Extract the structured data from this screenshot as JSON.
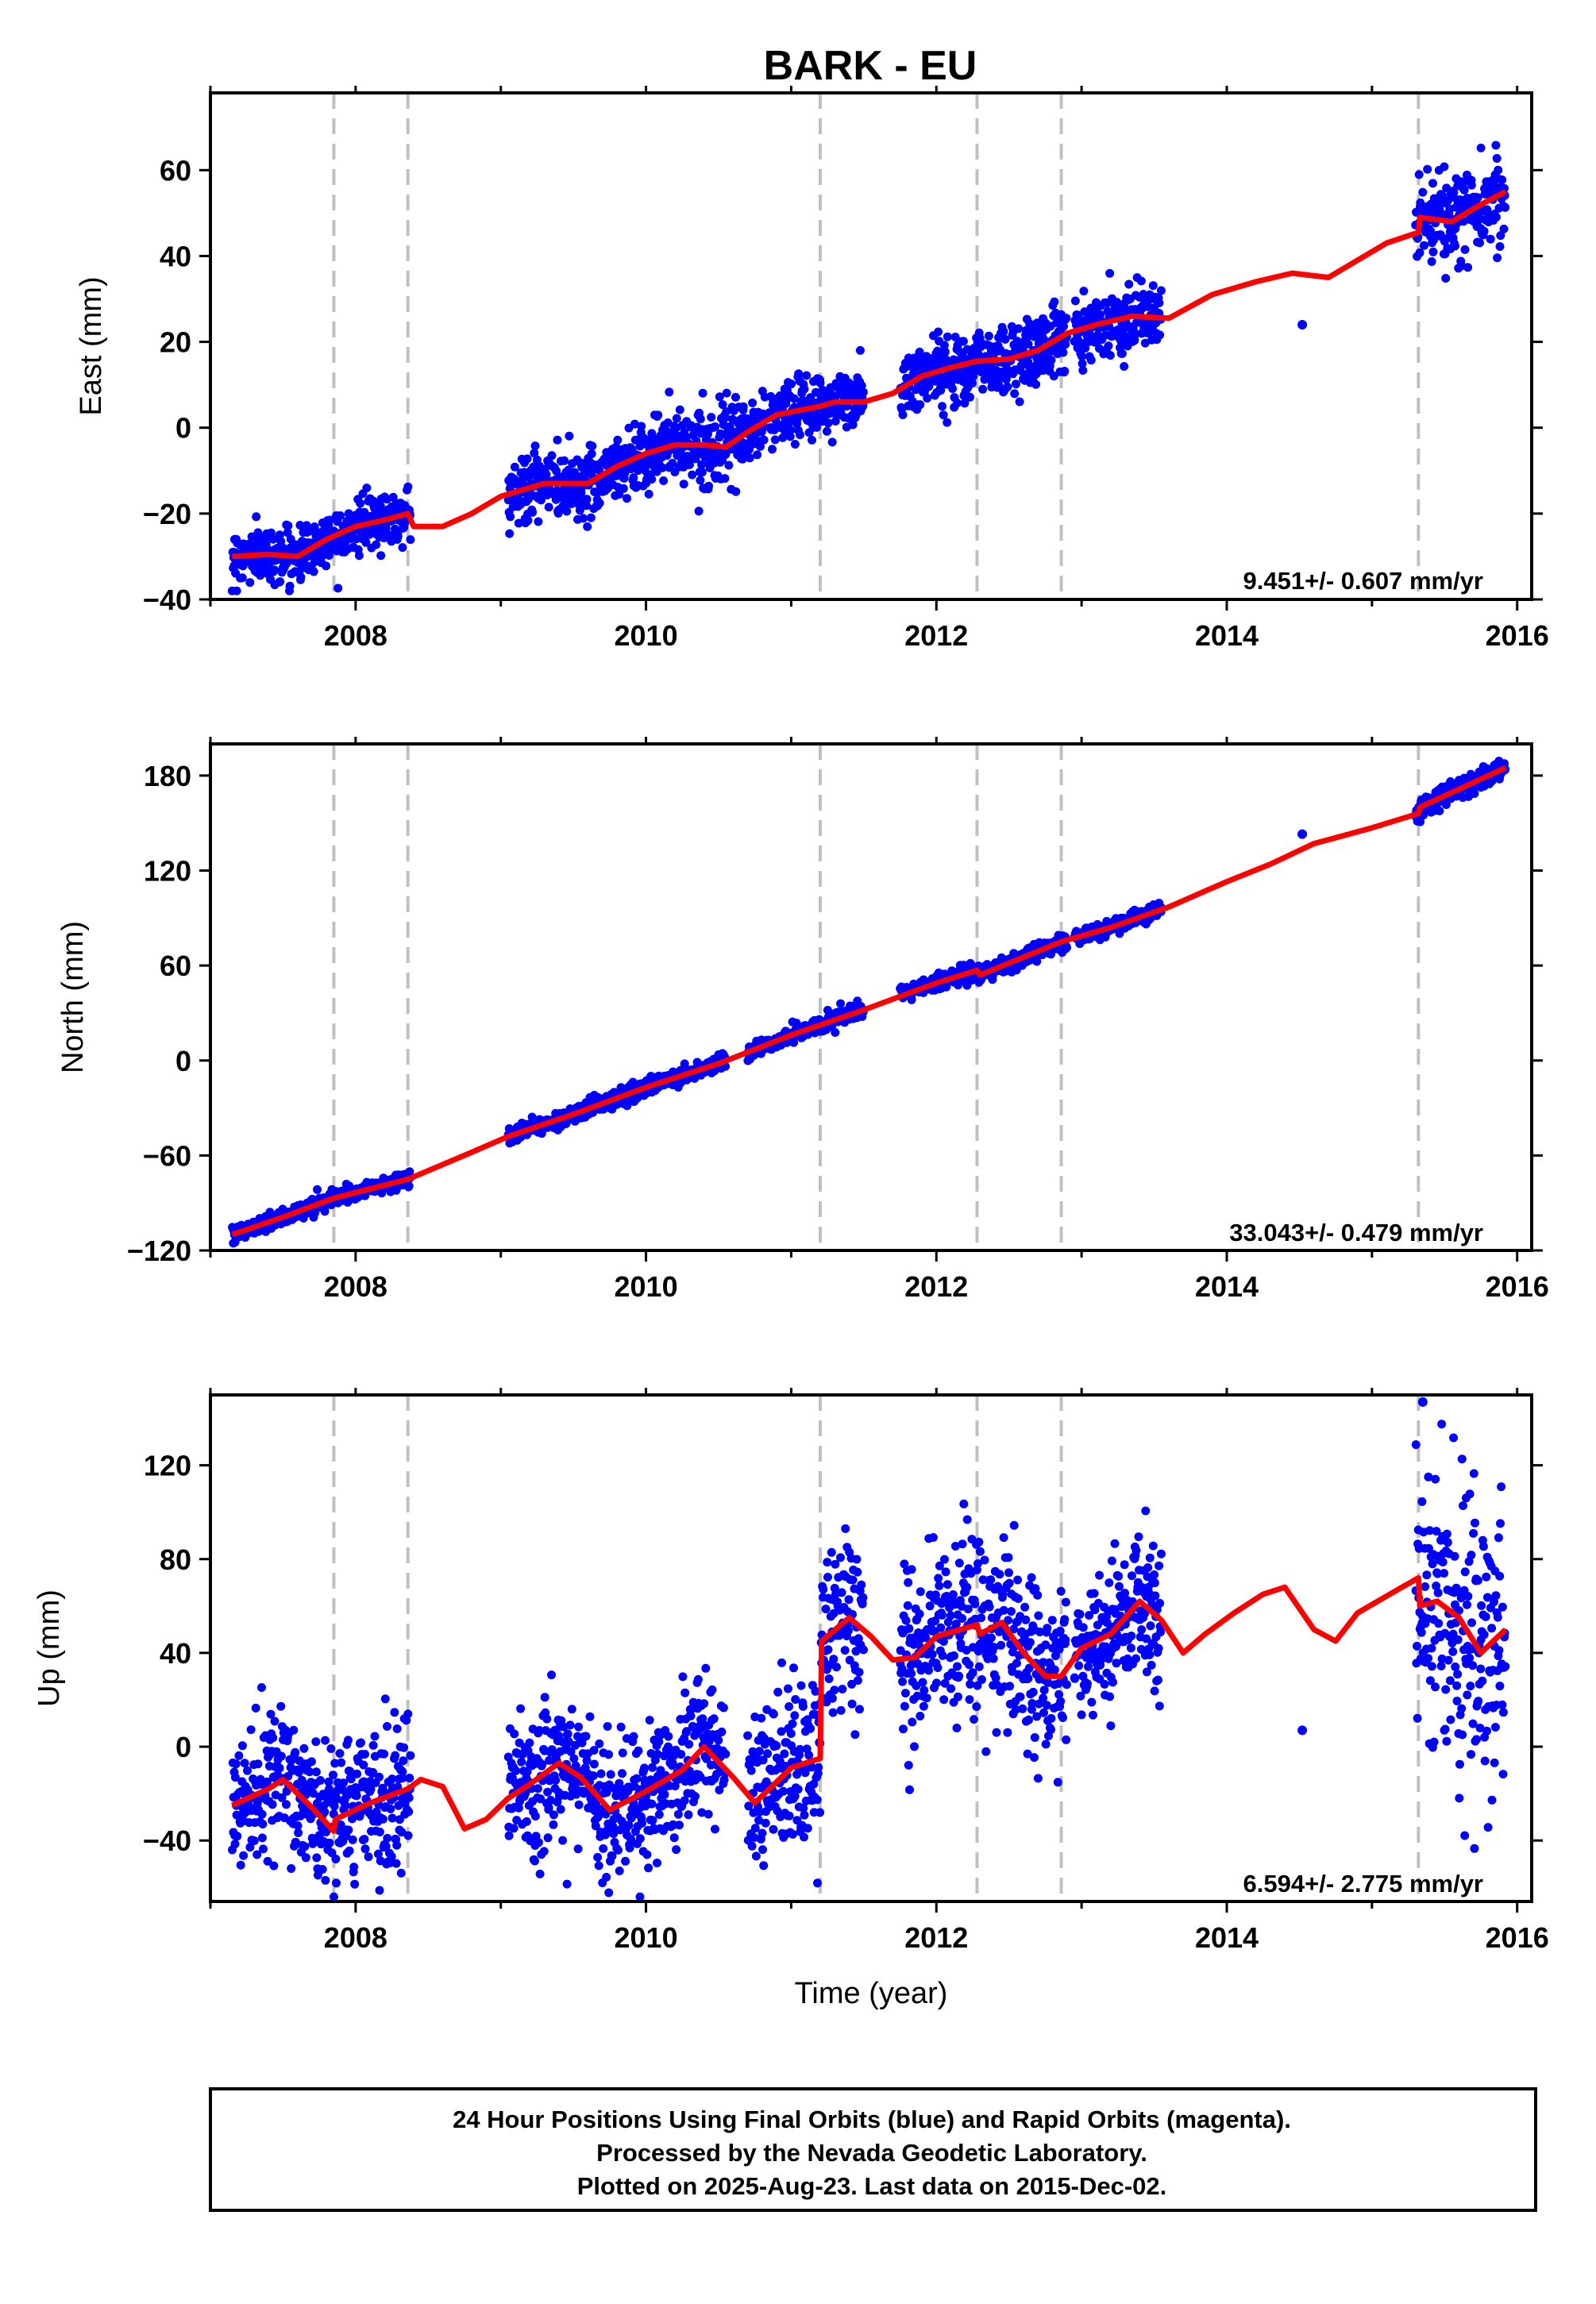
{
  "figure": {
    "title": "BARK - EU",
    "footer": [
      "24 Hour Positions Using Final Orbits (blue) and Rapid Orbits (magenta).",
      "Processed by the Nevada Geodetic Laboratory.",
      "Plotted on 2025-Aug-23. Last data on 2015-Dec-02."
    ],
    "colors": {
      "data_points": "#0000ff",
      "model_fit": "#ff0000",
      "equipment_change_lines": "#c0c0c0"
    }
  },
  "chart_data": [
    {
      "type": "scatter",
      "id": "east",
      "ylabel": "East (mm)",
      "xlabel": "",
      "xlim": [
        2007.0,
        2016.1
      ],
      "ylim": [
        -40,
        78
      ],
      "xticks": [
        2008,
        2010,
        2012,
        2014,
        2016
      ],
      "yticks": [
        -40,
        -20,
        0,
        20,
        40,
        60
      ],
      "rate_label": "9.451+/- 0.607 mm/yr",
      "breaks": [
        2007.85,
        2008.36,
        2011.2,
        2012.28,
        2012.86,
        2015.32
      ],
      "segments": [
        [
          2007.15,
          2008.38,
          -30,
          6,
          3
        ],
        [
          2009.05,
          2010.82,
          -16,
          6,
          4
        ],
        [
          2010.85,
          2011.5,
          5,
          4,
          3.5
        ],
        [
          2011.75,
          2012.9,
          12,
          4,
          4
        ],
        [
          2012.95,
          2013.55,
          25,
          4,
          3.5
        ],
        [
          2015.3,
          2015.92,
          48,
          5,
          5
        ]
      ],
      "outliers": [
        [
          2014.52,
          24
        ]
      ],
      "model": {
        "fit_start": 2007.15,
        "fit_end": 2015.92,
        "values": [
          [
            2007.15,
            -30
          ],
          [
            2007.4,
            -29.5
          ],
          [
            2007.6,
            -30
          ],
          [
            2007.8,
            -26
          ],
          [
            2008.0,
            -23
          ],
          [
            2008.2,
            -21.5
          ],
          [
            2008.36,
            -20
          ],
          [
            2008.4,
            -23
          ],
          [
            2008.6,
            -23
          ],
          [
            2008.8,
            -20
          ],
          [
            2009.0,
            -16
          ],
          [
            2009.3,
            -13
          ],
          [
            2009.6,
            -13
          ],
          [
            2009.8,
            -9
          ],
          [
            2010.0,
            -6
          ],
          [
            2010.2,
            -4
          ],
          [
            2010.4,
            -4
          ],
          [
            2010.55,
            -4.5
          ],
          [
            2010.7,
            -1
          ],
          [
            2010.9,
            3
          ],
          [
            2011.2,
            5
          ],
          [
            2011.3,
            6
          ],
          [
            2011.5,
            6
          ],
          [
            2011.7,
            8
          ],
          [
            2011.9,
            12
          ],
          [
            2012.1,
            14
          ],
          [
            2012.28,
            15.5
          ],
          [
            2012.5,
            16
          ],
          [
            2012.7,
            18
          ],
          [
            2012.9,
            22
          ],
          [
            2013.1,
            24
          ],
          [
            2013.35,
            26
          ],
          [
            2013.6,
            25.5
          ],
          [
            2013.9,
            31
          ],
          [
            2014.2,
            34
          ],
          [
            2014.45,
            36
          ],
          [
            2014.7,
            35
          ],
          [
            2014.9,
            39
          ],
          [
            2015.1,
            43
          ],
          [
            2015.32,
            45.5
          ],
          [
            2015.33,
            49
          ],
          [
            2015.55,
            48
          ],
          [
            2015.75,
            52
          ],
          [
            2015.92,
            55
          ]
        ]
      }
    },
    {
      "type": "scatter",
      "id": "north",
      "ylabel": "North (mm)",
      "xlabel": "",
      "xlim": [
        2007.0,
        2016.1
      ],
      "ylim": [
        -120,
        200
      ],
      "xticks": [
        2008,
        2010,
        2012,
        2014,
        2016
      ],
      "yticks": [
        -120,
        -60,
        0,
        60,
        120,
        180
      ],
      "rate_label": "33.043+/- 0.479 mm/yr",
      "breaks": [
        2007.85,
        2008.36,
        2011.2,
        2012.28,
        2012.86,
        2015.32
      ],
      "segments": [
        [
          2007.15,
          2008.38,
          -110,
          33,
          2.5
        ],
        [
          2009.05,
          2010.55,
          -46,
          33,
          2.5
        ],
        [
          2010.7,
          2011.5,
          13,
          33,
          2.5
        ],
        [
          2011.75,
          2012.9,
          49,
          33,
          2.5
        ],
        [
          2012.95,
          2013.55,
          85,
          33,
          2.5
        ],
        [
          2015.3,
          2015.92,
          162,
          33,
          3
        ]
      ],
      "outliers": [
        [
          2014.52,
          143
        ]
      ],
      "model": {
        "fit_start": 2007.15,
        "fit_end": 2015.92,
        "values": [
          [
            2007.15,
            -110
          ],
          [
            2007.5,
            -99
          ],
          [
            2007.85,
            -87
          ],
          [
            2008.36,
            -75
          ],
          [
            2008.8,
            -58
          ],
          [
            2009.05,
            -48
          ],
          [
            2009.5,
            -34
          ],
          [
            2010.0,
            -17
          ],
          [
            2010.5,
            -2
          ],
          [
            2011.0,
            16
          ],
          [
            2011.5,
            32
          ],
          [
            2012.0,
            49
          ],
          [
            2012.28,
            57
          ],
          [
            2012.3,
            54
          ],
          [
            2012.86,
            75
          ],
          [
            2013.2,
            84
          ],
          [
            2013.6,
            97
          ],
          [
            2014.0,
            113
          ],
          [
            2014.3,
            124
          ],
          [
            2014.6,
            137
          ],
          [
            2015.0,
            147
          ],
          [
            2015.32,
            156
          ],
          [
            2015.33,
            160
          ],
          [
            2015.92,
            185
          ]
        ]
      }
    },
    {
      "type": "scatter",
      "id": "up",
      "ylabel": "Up (mm)",
      "xlabel": "Time (year)",
      "xlim": [
        2007.0,
        2016.1
      ],
      "ylim": [
        -66,
        150
      ],
      "xticks": [
        2008,
        2010,
        2012,
        2014,
        2016
      ],
      "yticks": [
        -40,
        0,
        40,
        80,
        120
      ],
      "rate_label": "6.594+/- 2.775 mm/yr",
      "breaks": [
        2007.85,
        2008.36,
        2011.2,
        2012.28,
        2012.86,
        2015.32
      ],
      "segments": [
        [
          2007.15,
          2008.38,
          -20,
          6.5,
          15
        ],
        [
          2009.05,
          2010.55,
          -15,
          6.5,
          15
        ],
        [
          2010.7,
          2011.5,
          35,
          6.5,
          18
        ],
        [
          2011.75,
          2012.9,
          40,
          6.5,
          18
        ],
        [
          2012.95,
          2013.55,
          55,
          6.5,
          15
        ],
        [
          2015.3,
          2015.92,
          50,
          6.5,
          30
        ]
      ],
      "outliers": [
        [
          2014.52,
          7
        ],
        [
          2015.35,
          147
        ]
      ],
      "model": {
        "fit_start": 2007.15,
        "fit_end": 2015.92,
        "values": [
          [
            2007.15,
            -25
          ],
          [
            2007.4,
            -18
          ],
          [
            2007.5,
            -14
          ],
          [
            2007.7,
            -26
          ],
          [
            2007.85,
            -36
          ],
          [
            2007.86,
            -31
          ],
          [
            2008.1,
            -24
          ],
          [
            2008.36,
            -18
          ],
          [
            2008.45,
            -14
          ],
          [
            2008.6,
            -17
          ],
          [
            2008.75,
            -35
          ],
          [
            2008.9,
            -31
          ],
          [
            2009.05,
            -22
          ],
          [
            2009.2,
            -16
          ],
          [
            2009.4,
            -7
          ],
          [
            2009.55,
            -13
          ],
          [
            2009.75,
            -27
          ],
          [
            2010.0,
            -19
          ],
          [
            2010.25,
            -10
          ],
          [
            2010.4,
            0
          ],
          [
            2010.6,
            -13
          ],
          [
            2010.75,
            -24
          ],
          [
            2011.0,
            -9
          ],
          [
            2011.2,
            -5
          ],
          [
            2011.21,
            45
          ],
          [
            2011.4,
            55
          ],
          [
            2011.55,
            47
          ],
          [
            2011.7,
            37
          ],
          [
            2011.85,
            38
          ],
          [
            2012.0,
            47
          ],
          [
            2012.28,
            52
          ],
          [
            2012.3,
            48
          ],
          [
            2012.45,
            53
          ],
          [
            2012.6,
            40
          ],
          [
            2012.75,
            30
          ],
          [
            2012.86,
            30
          ],
          [
            2013.0,
            42
          ],
          [
            2013.2,
            48
          ],
          [
            2013.4,
            62
          ],
          [
            2013.55,
            54
          ],
          [
            2013.7,
            40
          ],
          [
            2013.85,
            48
          ],
          [
            2014.05,
            57
          ],
          [
            2014.25,
            65
          ],
          [
            2014.4,
            68
          ],
          [
            2014.6,
            50
          ],
          [
            2014.75,
            45
          ],
          [
            2014.9,
            57
          ],
          [
            2015.15,
            66
          ],
          [
            2015.32,
            72
          ],
          [
            2015.33,
            60
          ],
          [
            2015.45,
            62
          ],
          [
            2015.6,
            55
          ],
          [
            2015.75,
            40
          ],
          [
            2015.92,
            50
          ]
        ]
      }
    }
  ]
}
